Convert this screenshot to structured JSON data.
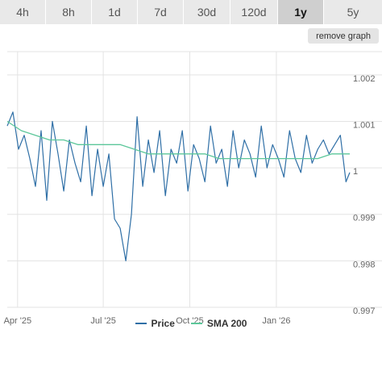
{
  "tabs": [
    {
      "label": "4h",
      "active": false
    },
    {
      "label": "8h",
      "active": false
    },
    {
      "label": "1d",
      "active": false
    },
    {
      "label": "7d",
      "active": false
    },
    {
      "label": "30d",
      "active": false
    },
    {
      "label": "120d",
      "active": false
    },
    {
      "label": "1y",
      "active": true
    },
    {
      "label": "5y",
      "active": false
    }
  ],
  "remove_graph_label": "remove graph",
  "legend": {
    "price_label": "Price",
    "sma_label": "SMA 200"
  },
  "colors": {
    "price": "#2f6fa6",
    "sma": "#5cc79a",
    "grid": "#e3e3e3",
    "tab_bg": "#e9e9e9",
    "tab_active_bg": "#cfcfcf"
  },
  "chart_data": {
    "type": "line",
    "x_tick_labels": [
      "Apr '25",
      "Jul '25",
      "Oct '25",
      "Jan '26"
    ],
    "x_tick_dates": [
      "2025-04-01",
      "2025-07-01",
      "2025-10-01",
      "2026-01-01"
    ],
    "x_range": [
      "2025-03-21",
      "2026-03-20"
    ],
    "y_tick_labels": [
      "1.002",
      "1.001",
      "1",
      "0.999",
      "0.998",
      "0.997"
    ],
    "y_ticks": [
      1.002,
      1.001,
      1.0,
      0.999,
      0.998,
      0.997
    ],
    "ylim": [
      0.997,
      1.0025
    ],
    "grid": true,
    "legend_position": "bottom-center",
    "series": [
      {
        "name": "Price",
        "x": [
          "2025-03-21",
          "2025-03-27",
          "2025-04-02",
          "2025-04-08",
          "2025-04-14",
          "2025-04-20",
          "2025-04-26",
          "2025-05-02",
          "2025-05-08",
          "2025-05-14",
          "2025-05-20",
          "2025-05-26",
          "2025-06-01",
          "2025-06-07",
          "2025-06-13",
          "2025-06-19",
          "2025-06-25",
          "2025-07-01",
          "2025-07-07",
          "2025-07-13",
          "2025-07-19",
          "2025-07-25",
          "2025-07-31",
          "2025-08-06",
          "2025-08-12",
          "2025-08-18",
          "2025-08-24",
          "2025-08-30",
          "2025-09-05",
          "2025-09-11",
          "2025-09-17",
          "2025-09-23",
          "2025-09-29",
          "2025-10-05",
          "2025-10-11",
          "2025-10-17",
          "2025-10-23",
          "2025-10-29",
          "2025-11-04",
          "2025-11-10",
          "2025-11-16",
          "2025-11-22",
          "2025-11-28",
          "2025-12-04",
          "2025-12-10",
          "2025-12-16",
          "2025-12-22",
          "2025-12-28",
          "2026-01-03",
          "2026-01-09",
          "2026-01-15",
          "2026-01-21",
          "2026-01-27",
          "2026-02-02",
          "2026-02-08",
          "2026-02-14",
          "2026-02-20",
          "2026-02-26",
          "2026-03-04",
          "2026-03-10",
          "2026-03-16",
          "2026-03-20"
        ],
        "values": [
          1.0009,
          1.0012,
          1.0004,
          1.0007,
          1.0002,
          0.9996,
          1.0008,
          0.9993,
          1.001,
          1.0003,
          0.9995,
          1.0006,
          1.0001,
          0.9997,
          1.0009,
          0.9994,
          1.0004,
          0.9996,
          1.0003,
          0.9989,
          0.9987,
          0.998,
          0.999,
          1.0011,
          0.9996,
          1.0006,
          0.9999,
          1.0008,
          0.9994,
          1.0004,
          1.0001,
          1.0008,
          0.9995,
          1.0005,
          1.0002,
          0.9997,
          1.0009,
          1.0001,
          1.0004,
          0.9996,
          1.0008,
          1.0,
          1.0006,
          1.0003,
          0.9998,
          1.0009,
          1.0,
          1.0005,
          1.0002,
          0.9998,
          1.0008,
          1.0002,
          0.9999,
          1.0007,
          1.0001,
          1.0004,
          1.0006,
          1.0003,
          1.0005,
          1.0007,
          0.9997,
          0.9999
        ]
      },
      {
        "name": "SMA 200",
        "x": [
          "2025-03-21",
          "2025-04-05",
          "2025-04-20",
          "2025-05-05",
          "2025-05-20",
          "2025-06-04",
          "2025-06-19",
          "2025-07-04",
          "2025-07-19",
          "2025-08-03",
          "2025-08-18",
          "2025-09-02",
          "2025-09-17",
          "2025-10-02",
          "2025-10-17",
          "2025-11-01",
          "2025-11-16",
          "2025-12-01",
          "2025-12-16",
          "2025-12-31",
          "2026-01-15",
          "2026-01-30",
          "2026-02-14",
          "2026-03-01",
          "2026-03-20"
        ],
        "values": [
          1.001,
          1.0008,
          1.0007,
          1.0006,
          1.0006,
          1.0005,
          1.0005,
          1.0005,
          1.0005,
          1.0004,
          1.0003,
          1.0003,
          1.0003,
          1.0003,
          1.0003,
          1.0002,
          1.0002,
          1.0002,
          1.0002,
          1.0002,
          1.0002,
          1.0002,
          1.0002,
          1.0003,
          1.0003
        ]
      }
    ]
  }
}
